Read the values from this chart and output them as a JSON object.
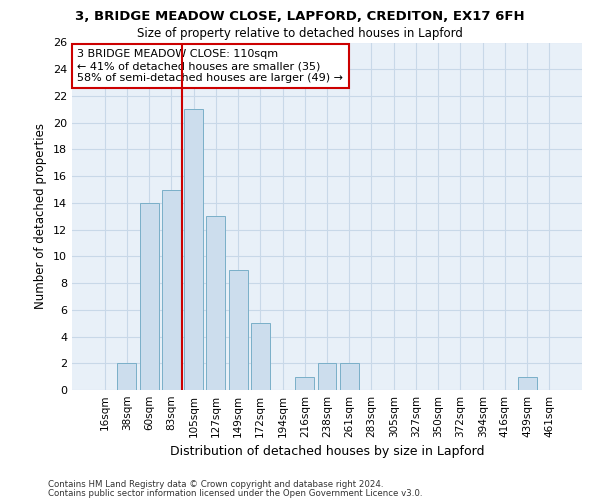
{
  "title": "3, BRIDGE MEADOW CLOSE, LAPFORD, CREDITON, EX17 6FH",
  "subtitle": "Size of property relative to detached houses in Lapford",
  "xlabel": "Distribution of detached houses by size in Lapford",
  "ylabel": "Number of detached properties",
  "bar_labels": [
    "16sqm",
    "38sqm",
    "60sqm",
    "83sqm",
    "105sqm",
    "127sqm",
    "149sqm",
    "172sqm",
    "194sqm",
    "216sqm",
    "238sqm",
    "261sqm",
    "283sqm",
    "305sqm",
    "327sqm",
    "350sqm",
    "372sqm",
    "394sqm",
    "416sqm",
    "439sqm",
    "461sqm"
  ],
  "bar_values": [
    0,
    2,
    14,
    15,
    21,
    13,
    9,
    5,
    0,
    1,
    2,
    2,
    0,
    0,
    0,
    0,
    0,
    0,
    0,
    1,
    0
  ],
  "bar_color": "#ccdded",
  "bar_edge_color": "#7aafc8",
  "vline_color": "#cc0000",
  "vline_x": 3.5,
  "annotation_line1": "3 BRIDGE MEADOW CLOSE: 110sqm",
  "annotation_line2": "← 41% of detached houses are smaller (35)",
  "annotation_line3": "58% of semi-detached houses are larger (49) →",
  "annotation_box_facecolor": "#ffffff",
  "annotation_box_edgecolor": "#cc0000",
  "ylim": [
    0,
    26
  ],
  "yticks": [
    0,
    2,
    4,
    6,
    8,
    10,
    12,
    14,
    16,
    18,
    20,
    22,
    24,
    26
  ],
  "grid_color": "#c8d8e8",
  "plot_bg_color": "#e8f0f8",
  "footnote1": "Contains HM Land Registry data © Crown copyright and database right 2024.",
  "footnote2": "Contains public sector information licensed under the Open Government Licence v3.0."
}
